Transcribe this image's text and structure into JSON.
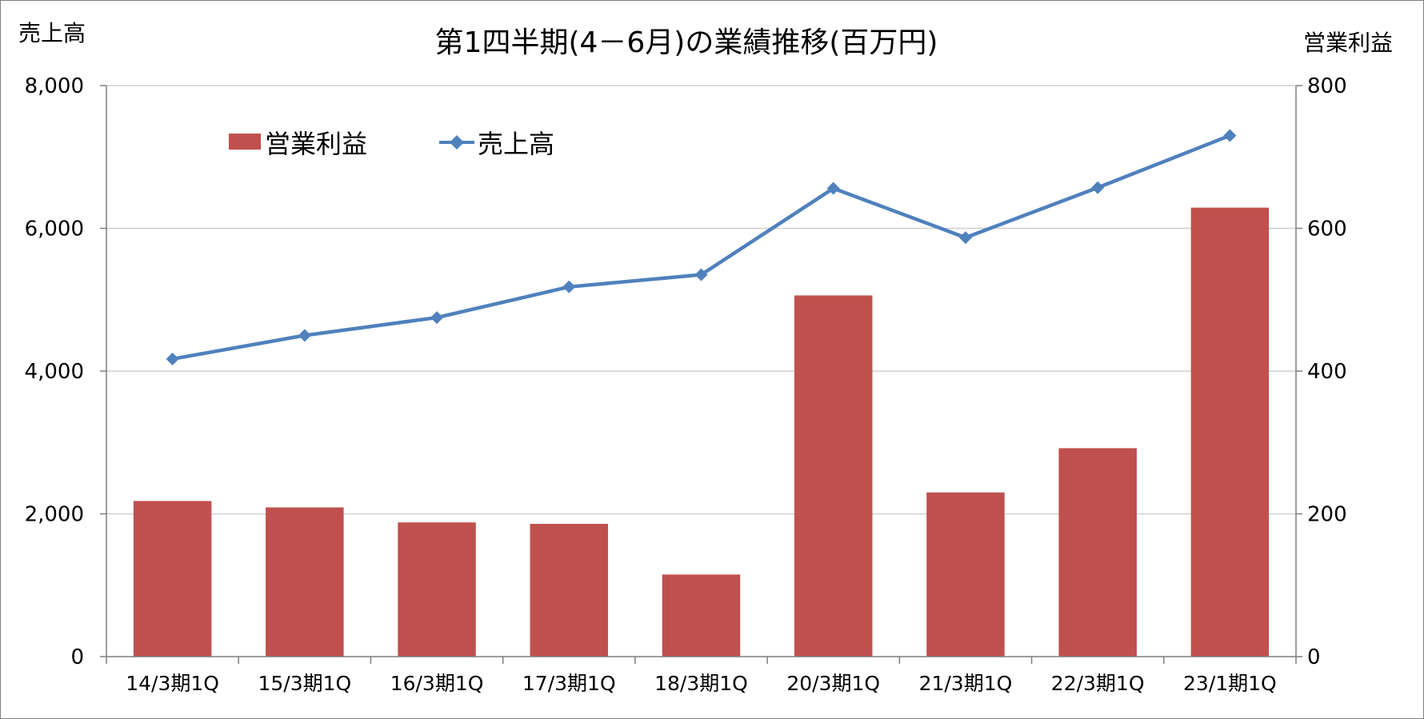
{
  "chart_data": {
    "type": "bar",
    "title": "第1四半期(4－6月)の業績推移(百万円)",
    "categories": [
      "14/3期1Q",
      "15/3期1Q",
      "16/3期1Q",
      "17/3期1Q",
      "18/3期1Q",
      "20/3期1Q",
      "21/3期1Q",
      "22/3期1Q",
      "23/1期1Q"
    ],
    "series": [
      {
        "name": "営業利益",
        "type": "bar",
        "axis": "right",
        "color": "#C0504D",
        "values": [
          218,
          209,
          188,
          186,
          115,
          506,
          230,
          292,
          629
        ]
      },
      {
        "name": "売上高",
        "type": "line",
        "axis": "left",
        "color": "#4F81BD",
        "marker": "diamond",
        "values": [
          4170,
          4500,
          4750,
          5180,
          5350,
          6560,
          5870,
          6570,
          7300
        ]
      }
    ],
    "y_left": {
      "label": "売上高",
      "min": 0,
      "max": 8000,
      "ticks": [
        0,
        2000,
        4000,
        6000,
        8000
      ],
      "tick_labels": [
        "0",
        "2,000",
        "4,000",
        "6,000",
        "8,000"
      ]
    },
    "y_right": {
      "label": "営業利益",
      "min": 0,
      "max": 800,
      "ticks": [
        0,
        200,
        400,
        600,
        800
      ],
      "tick_labels": [
        "0",
        "200",
        "400",
        "600",
        "800"
      ]
    },
    "grid": true,
    "legend_position": "top-left"
  }
}
